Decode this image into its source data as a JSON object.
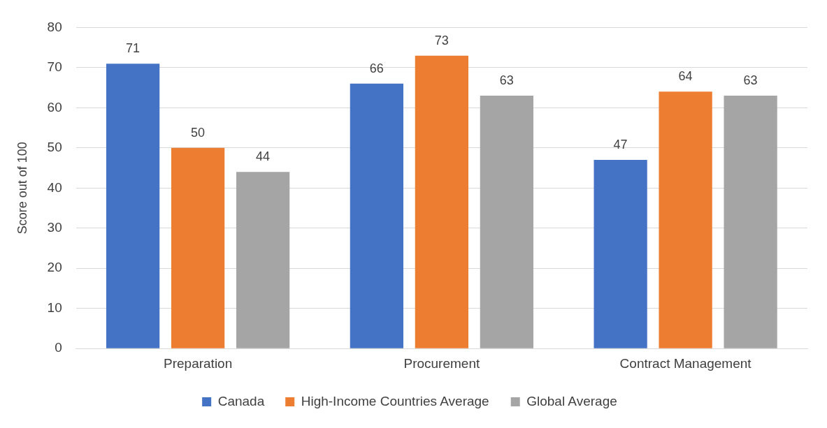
{
  "chart_data": {
    "type": "bar",
    "ylabel": "Score out of 100",
    "categories": [
      "Preparation",
      "Procurement",
      "Contract Management"
    ],
    "series": [
      {
        "name": "Canada",
        "color": "#4472c4",
        "values": [
          71,
          66,
          47
        ]
      },
      {
        "name": "High-Income Countries Average",
        "color": "#ed7d31",
        "values": [
          50,
          73,
          64
        ]
      },
      {
        "name": "Global Average",
        "color": "#a5a5a5",
        "values": [
          44,
          63,
          63
        ]
      }
    ],
    "ylim": [
      0,
      80
    ],
    "yticks": [
      0,
      10,
      20,
      30,
      40,
      50,
      60,
      70,
      80
    ],
    "grid": "y",
    "legend": "bottom",
    "data_labels": true
  }
}
